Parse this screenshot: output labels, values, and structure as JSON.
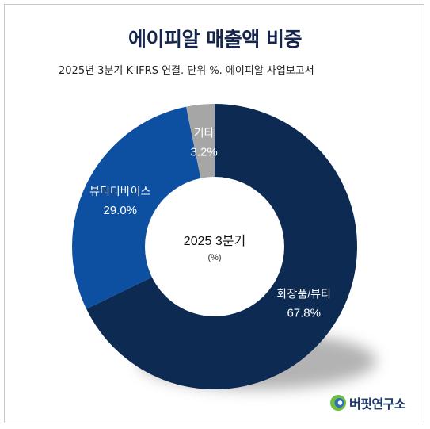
{
  "title": "에이피알 매출액 비중",
  "subtitle": "2025년 3분기 K-IFRS 연결. 단위 %. 에이피알 사업보고서",
  "brand": {
    "name": "버핏연구소",
    "colors": {
      "green": "#6fbe44",
      "blue": "#2f6fb5"
    }
  },
  "chart_data": {
    "type": "pie",
    "donut": true,
    "center_label": "2025 3분기",
    "center_sublabel": "(%)",
    "slices": [
      {
        "label": "화장품/뷰티",
        "value": 67.8,
        "value_label": "67.8%",
        "color": "#0c2a52"
      },
      {
        "label": "뷰티디바이스",
        "value": 29.0,
        "value_label": "29.0%",
        "color": "#0d4fa0"
      },
      {
        "label": "기타",
        "value": 3.2,
        "value_label": "3.2%",
        "color": "#a6a6a6"
      }
    ]
  }
}
